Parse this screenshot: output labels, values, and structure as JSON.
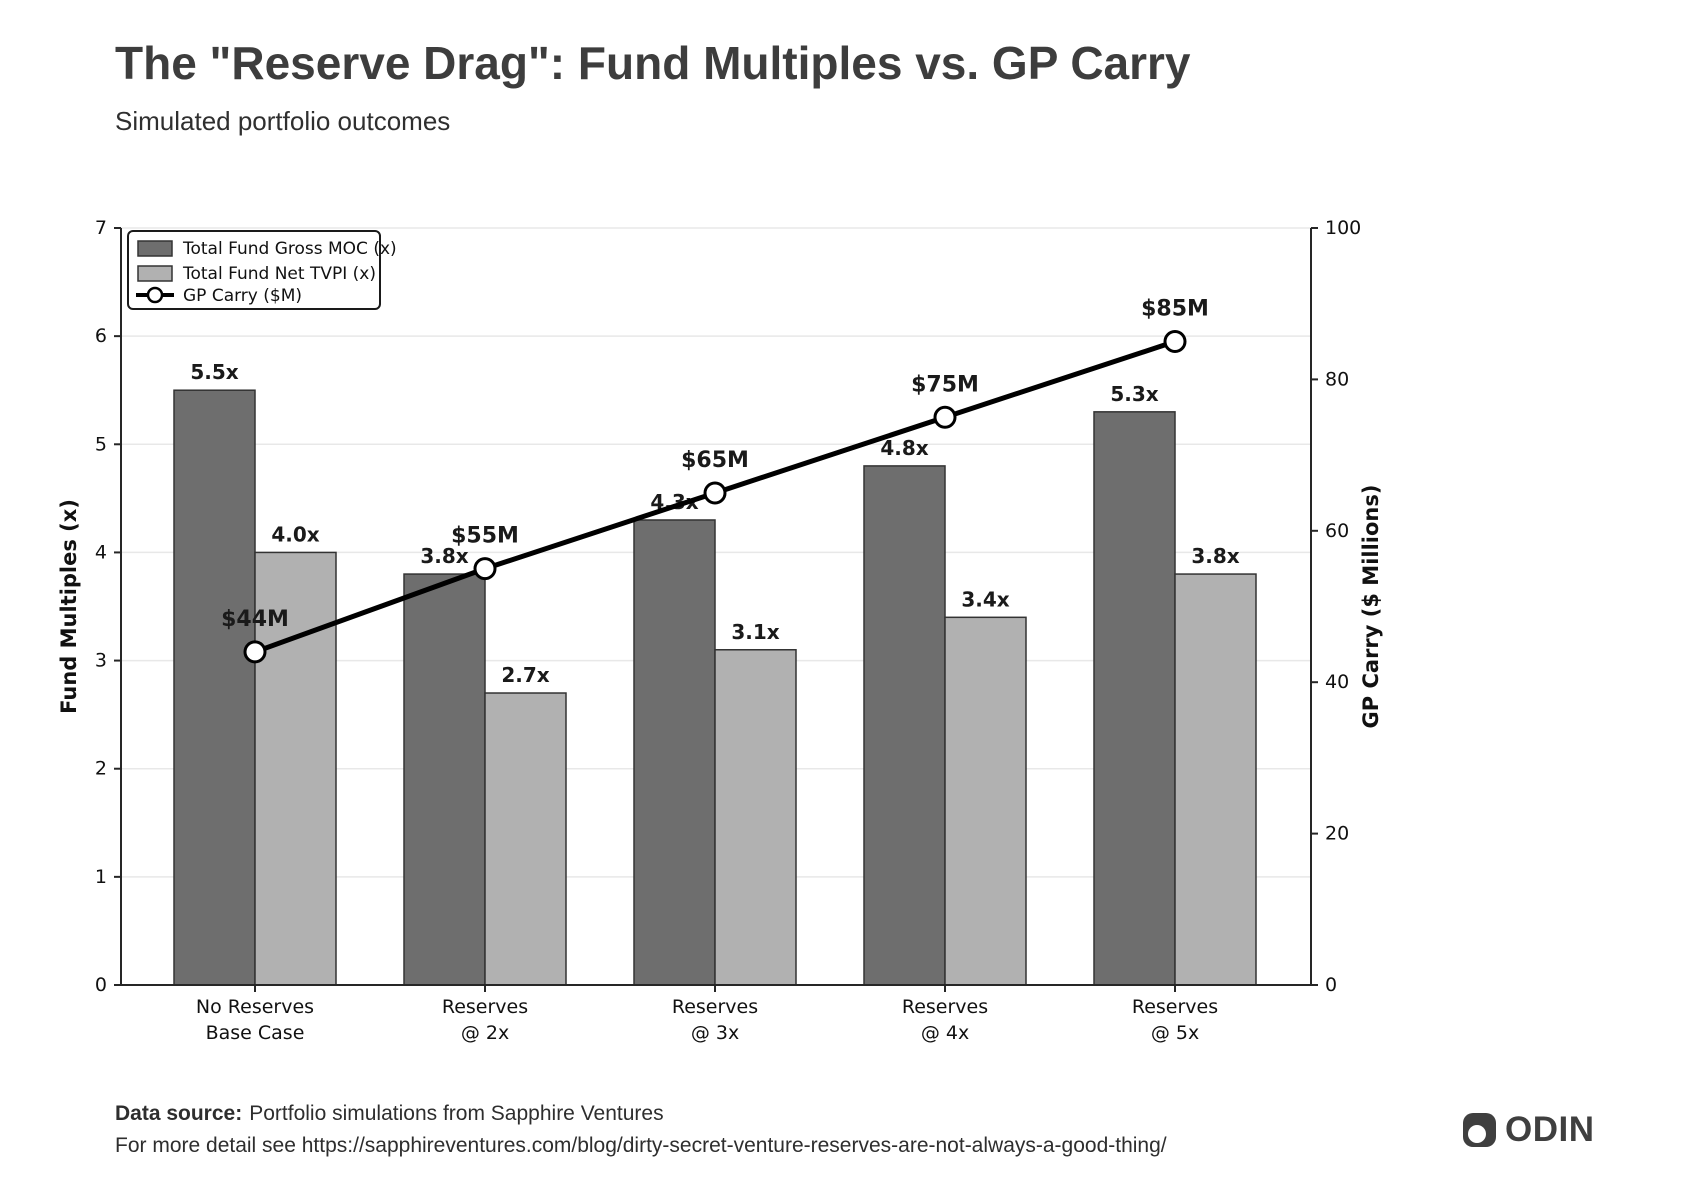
{
  "header": {
    "title": "The \"Reserve Drag\": Fund Multiples vs. GP Carry",
    "subtitle": "Simulated portfolio outcomes"
  },
  "footer": {
    "source_label": "Data source:",
    "source_text": "Portfolio simulations from Sapphire Ventures",
    "detail_text": "For more detail see https://sapphireventures.com/blog/dirty-secret-venture-reserves-are-not-always-a-good-thing/"
  },
  "logo": {
    "text": "ODIN"
  },
  "colors": {
    "gross_bar": "#6e6e6e",
    "net_bar": "#b1b1b1",
    "bar_edge": "#333333",
    "line": "#000000",
    "grid": "#e8e8e8",
    "spine": "#262626",
    "chart_text": "#111111",
    "label_text": "#1a1a1a"
  },
  "chart_data": {
    "type": "combo-bar-line",
    "title": "The \"Reserve Drag\": Fund Multiples vs. GP Carry",
    "subtitle": "Simulated portfolio outcomes",
    "categories": [
      [
        "No Reserves",
        "Base Case"
      ],
      [
        "Reserves",
        "@ 2x"
      ],
      [
        "Reserves",
        "@ 3x"
      ],
      [
        "Reserves",
        "@ 4x"
      ],
      [
        "Reserves",
        "@ 5x"
      ]
    ],
    "series": [
      {
        "name": "Total Fund Gross MOC (x)",
        "type": "bar",
        "axis": "left",
        "values": [
          5.5,
          3.8,
          4.3,
          4.8,
          5.3
        ],
        "labels": [
          "5.5x",
          "3.8x",
          "4.3x",
          "4.8x",
          "5.3x"
        ]
      },
      {
        "name": "Total Fund Net TVPI (x)",
        "type": "bar",
        "axis": "left",
        "values": [
          4.0,
          2.7,
          3.1,
          3.4,
          3.8
        ],
        "labels": [
          "4.0x",
          "2.7x",
          "3.1x",
          "3.4x",
          "3.8x"
        ]
      },
      {
        "name": "GP Carry ($M)",
        "type": "line",
        "axis": "right",
        "values": [
          44,
          55,
          65,
          75,
          85
        ],
        "labels": [
          "$44M",
          "$55M",
          "$65M",
          "$75M",
          "$85M"
        ]
      }
    ],
    "left_axis": {
      "label": "Fund Multiples (x)",
      "min": 0,
      "max": 7,
      "ticks": [
        0,
        1,
        2,
        3,
        4,
        5,
        6,
        7
      ]
    },
    "right_axis": {
      "label": "GP Carry ($ Millions)",
      "min": 0,
      "max": 100,
      "ticks": [
        0,
        20,
        40,
        60,
        80,
        100
      ]
    },
    "grid": "horizontal",
    "legend_position": "top-left"
  }
}
